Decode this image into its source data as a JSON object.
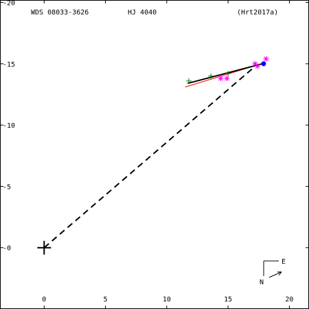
{
  "chart_data": {
    "type": "scatter",
    "title_left": "WDS 08033-3626",
    "title_center": "HJ 4040",
    "title_right": "(Hrt2017a)",
    "x_ticks": [
      0,
      5,
      10,
      15,
      20
    ],
    "y_ticks": [
      0,
      5,
      10,
      15,
      20
    ],
    "x_tick_labels": [
      "0",
      "5",
      "10",
      "15",
      "20"
    ],
    "y_tick_labels": [
      "-0",
      "-5",
      "-10",
      "-15",
      "-20"
    ],
    "xlim": [
      -3.6,
      21.6
    ],
    "ylim": [
      -5,
      20.2
    ],
    "primary": {
      "x": 0,
      "y": 0
    },
    "orbit_fit_line": {
      "x": [
        11.7,
        17.8
      ],
      "y": [
        13.4,
        15.0
      ]
    },
    "red_fit_line": {
      "x": [
        11.5,
        17.4
      ],
      "y": [
        13.1,
        14.9
      ]
    },
    "line_to_latest": {
      "x": [
        0,
        17.1
      ],
      "y": [
        0,
        14.7
      ]
    },
    "series": [
      {
        "marker": "plus",
        "color": "#008000",
        "points": [
          [
            11.8,
            13.6
          ],
          [
            13.6,
            14.0
          ],
          [
            15.0,
            14.2
          ]
        ]
      },
      {
        "marker": "asterisk",
        "color": "#ff00ff",
        "points": [
          [
            14.4,
            13.8
          ],
          [
            14.9,
            13.8
          ],
          [
            17.2,
            15.0
          ],
          [
            17.4,
            14.8
          ],
          [
            18.1,
            15.4
          ]
        ]
      },
      {
        "marker": "dot",
        "color": "#0000ff",
        "points": [
          [
            17.9,
            15.0
          ]
        ]
      }
    ],
    "compass": {
      "east_label": "E",
      "north_label": "N"
    }
  }
}
